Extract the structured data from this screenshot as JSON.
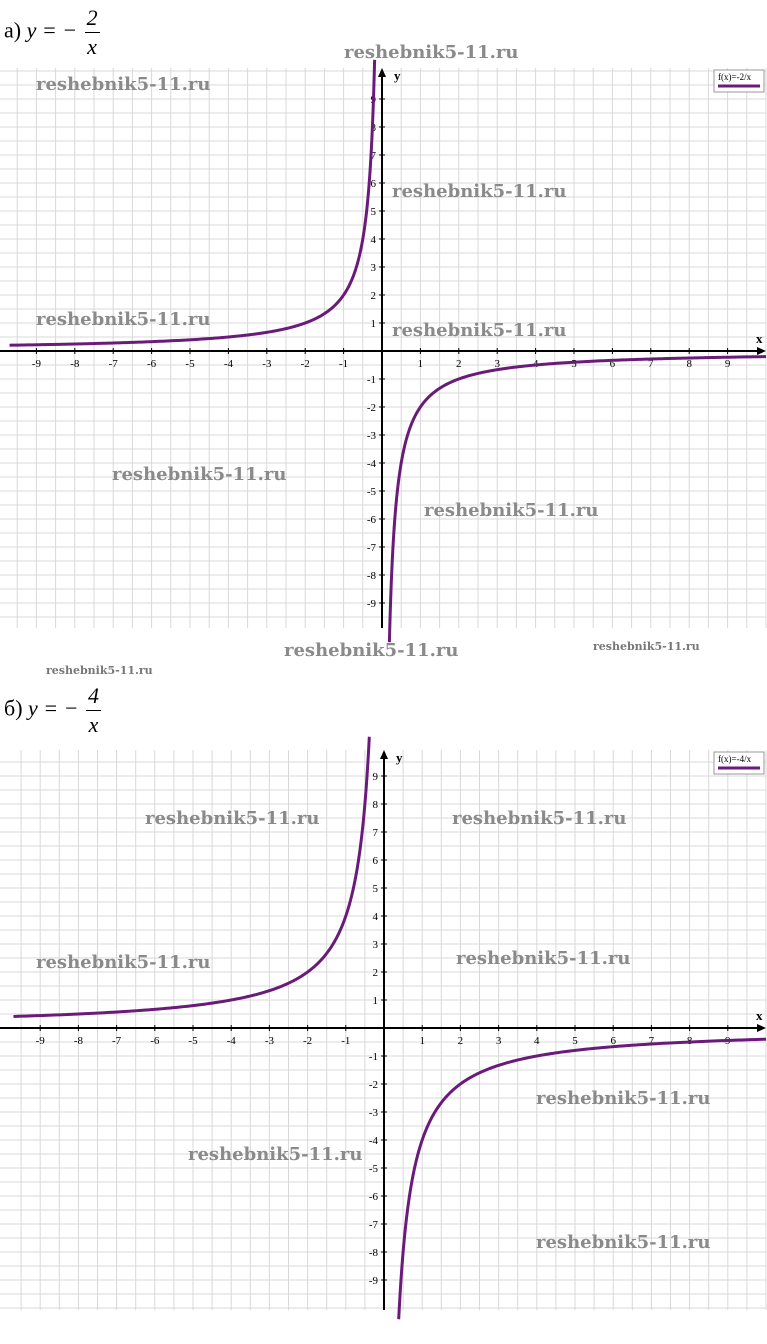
{
  "chart_data": [
    {
      "type": "line",
      "label_prefix": "а)",
      "label_var": "y = −",
      "label_num": "2",
      "label_den": "x",
      "function_k": -2,
      "legend": "f(x)=-2/x",
      "xlabel": "x",
      "ylabel": "y",
      "xlim": [
        -9.7,
        10
      ],
      "ylim": [
        -10,
        10
      ],
      "x_ticks": [
        -9,
        -8,
        -7,
        -6,
        -5,
        -4,
        -3,
        -2,
        -1,
        1,
        2,
        3,
        4,
        5,
        6,
        7,
        8,
        9
      ],
      "y_ticks": [
        -9,
        -8,
        -7,
        -6,
        -5,
        -4,
        -3,
        -2,
        -1,
        1,
        2,
        3,
        4,
        5,
        6,
        7,
        8,
        9
      ],
      "grid": true,
      "legend_position": "top-right"
    },
    {
      "type": "line",
      "label_prefix": "б)",
      "label_var": "y = −",
      "label_num": "4",
      "label_den": "x",
      "function_k": -4,
      "legend": "f(x)=-4/x",
      "xlabel": "x",
      "ylabel": "y",
      "xlim": [
        -9.7,
        10
      ],
      "ylim": [
        -10,
        10
      ],
      "x_ticks": [
        -9,
        -8,
        -7,
        -6,
        -5,
        -4,
        -3,
        -2,
        -1,
        1,
        2,
        3,
        4,
        5,
        6,
        7,
        8,
        9
      ],
      "y_ticks": [
        -9,
        -8,
        -7,
        -6,
        -5,
        -4,
        -3,
        -2,
        -1,
        1,
        2,
        3,
        4,
        5,
        6,
        7,
        8,
        9
      ],
      "grid": true,
      "legend_position": "top-right"
    }
  ],
  "watermark_text": "reshebnik5-11.ru"
}
